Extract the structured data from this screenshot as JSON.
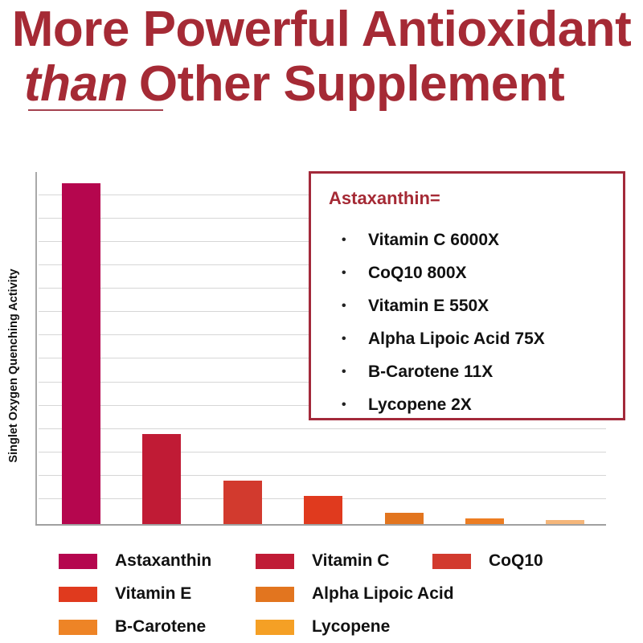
{
  "header": {
    "title_line1": "More Powerful Antioxidant",
    "title_line2_emphasis": "than",
    "title_line2_rest": "Other Supplement"
  },
  "callout": {
    "title": "Astaxanthin=",
    "bullet": "•",
    "items": [
      {
        "label": "Vitamin C  6000X"
      },
      {
        "label": "CoQ10  800X"
      },
      {
        "label": "Vitamin E  550X"
      },
      {
        "label": "Alpha Lipoic Acid  75X"
      },
      {
        "label": "B-Carotene  11X"
      },
      {
        "label": "Lycopene  2X"
      }
    ]
  },
  "legend": [
    {
      "label": "Astaxanthin",
      "color": "#b5064e"
    },
    {
      "label": "Vitamin C",
      "color": "#c01b35"
    },
    {
      "label": "CoQ10",
      "color": "#d23a2e"
    },
    {
      "label": "Vitamin E",
      "color": "#e03a1e"
    },
    {
      "label": "Alpha Lipoic Acid",
      "color": "#e2751f"
    },
    {
      "label": "B-Carotene",
      "color": "#ee8426"
    },
    {
      "label": "Lycopene",
      "color": "#f5a025"
    }
  ],
  "chart_data": {
    "type": "bar",
    "title": "More Powerful Antioxidant than Other Supplement",
    "xlabel": "",
    "ylabel": "Singlet Oxygen Quenching Activity",
    "categories": [
      "Astaxanthin",
      "Vitamin C",
      "CoQ10",
      "Vitamin E",
      "Alpha Lipoic Acid",
      "B-Carotene",
      "Lycopene"
    ],
    "values": [
      14.6,
      3.9,
      1.9,
      1.25,
      0.5,
      0.28,
      0.2
    ],
    "value_units": "relative (gridline steps, axis unlabeled)",
    "bar_colors": [
      "#b5064e",
      "#c01b35",
      "#d23a2e",
      "#e03a1e",
      "#e2751f",
      "#ec7d22",
      "#f5b67a"
    ],
    "ylim": [
      0,
      15
    ],
    "grid": true,
    "gridline_count": 14,
    "legend_position": "bottom",
    "annotation": {
      "title": "Astaxanthin=",
      "comparisons": [
        {
          "name": "Vitamin C",
          "multiplier": "6000X"
        },
        {
          "name": "CoQ10",
          "multiplier": "800X"
        },
        {
          "name": "Vitamin E",
          "multiplier": "550X"
        },
        {
          "name": "Alpha Lipoic Acid",
          "multiplier": "75X"
        },
        {
          "name": "B-Carotene",
          "multiplier": "11X"
        },
        {
          "name": "Lycopene",
          "multiplier": "2X"
        }
      ]
    }
  }
}
